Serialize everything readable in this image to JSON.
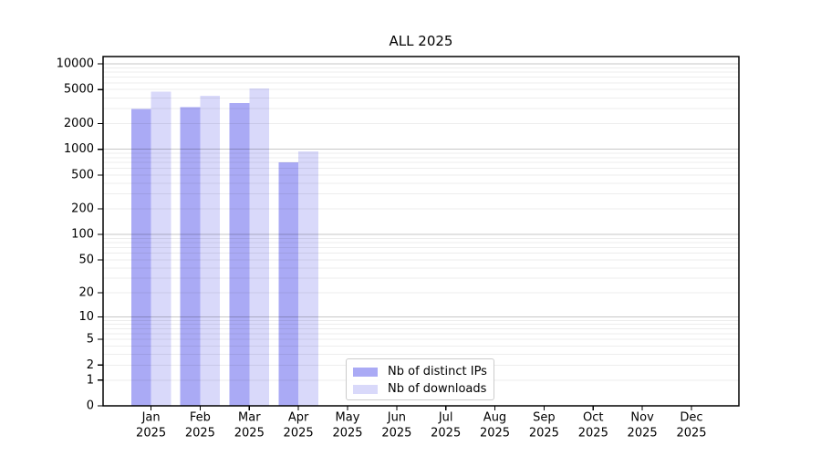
{
  "title": "ALL 2025",
  "colors": {
    "distinct_ips": "#aaaaf5",
    "downloads": "#d9d9fa",
    "grid_major": "rgba(0,0,0,0.22)",
    "grid_minor": "rgba(0,0,0,0.07)",
    "axis": "#000000",
    "tick_label": "#000000"
  },
  "legend": {
    "items": [
      {
        "label": "Nb of distinct IPs",
        "color": "#aaaaf5"
      },
      {
        "label": "Nb of downloads",
        "color": "#d9d9fa"
      }
    ]
  },
  "chart_data": {
    "type": "bar",
    "title": "ALL 2025",
    "categories": [
      "Jan 2025",
      "Feb 2025",
      "Mar 2025",
      "Apr 2025",
      "May 2025",
      "Jun 2025",
      "Jul 2025",
      "Aug 2025",
      "Sep 2025",
      "Oct 2025",
      "Nov 2025",
      "Dec 2025"
    ],
    "series": [
      {
        "name": "Nb of distinct IPs",
        "values": [
          2980,
          3100,
          3480,
          700,
          0,
          0,
          0,
          0,
          0,
          0,
          0,
          0
        ]
      },
      {
        "name": "Nb of downloads",
        "values": [
          4750,
          4240,
          5160,
          950,
          0,
          0,
          0,
          0,
          0,
          0,
          0,
          0
        ]
      }
    ],
    "yscale": "log1p",
    "ylim": [
      0,
      12175
    ],
    "yticks": [
      0,
      1,
      2,
      5,
      10,
      20,
      50,
      100,
      200,
      500,
      1000,
      2000,
      5000,
      10000
    ],
    "grid": true,
    "legend_position": "lower-center-inside"
  }
}
